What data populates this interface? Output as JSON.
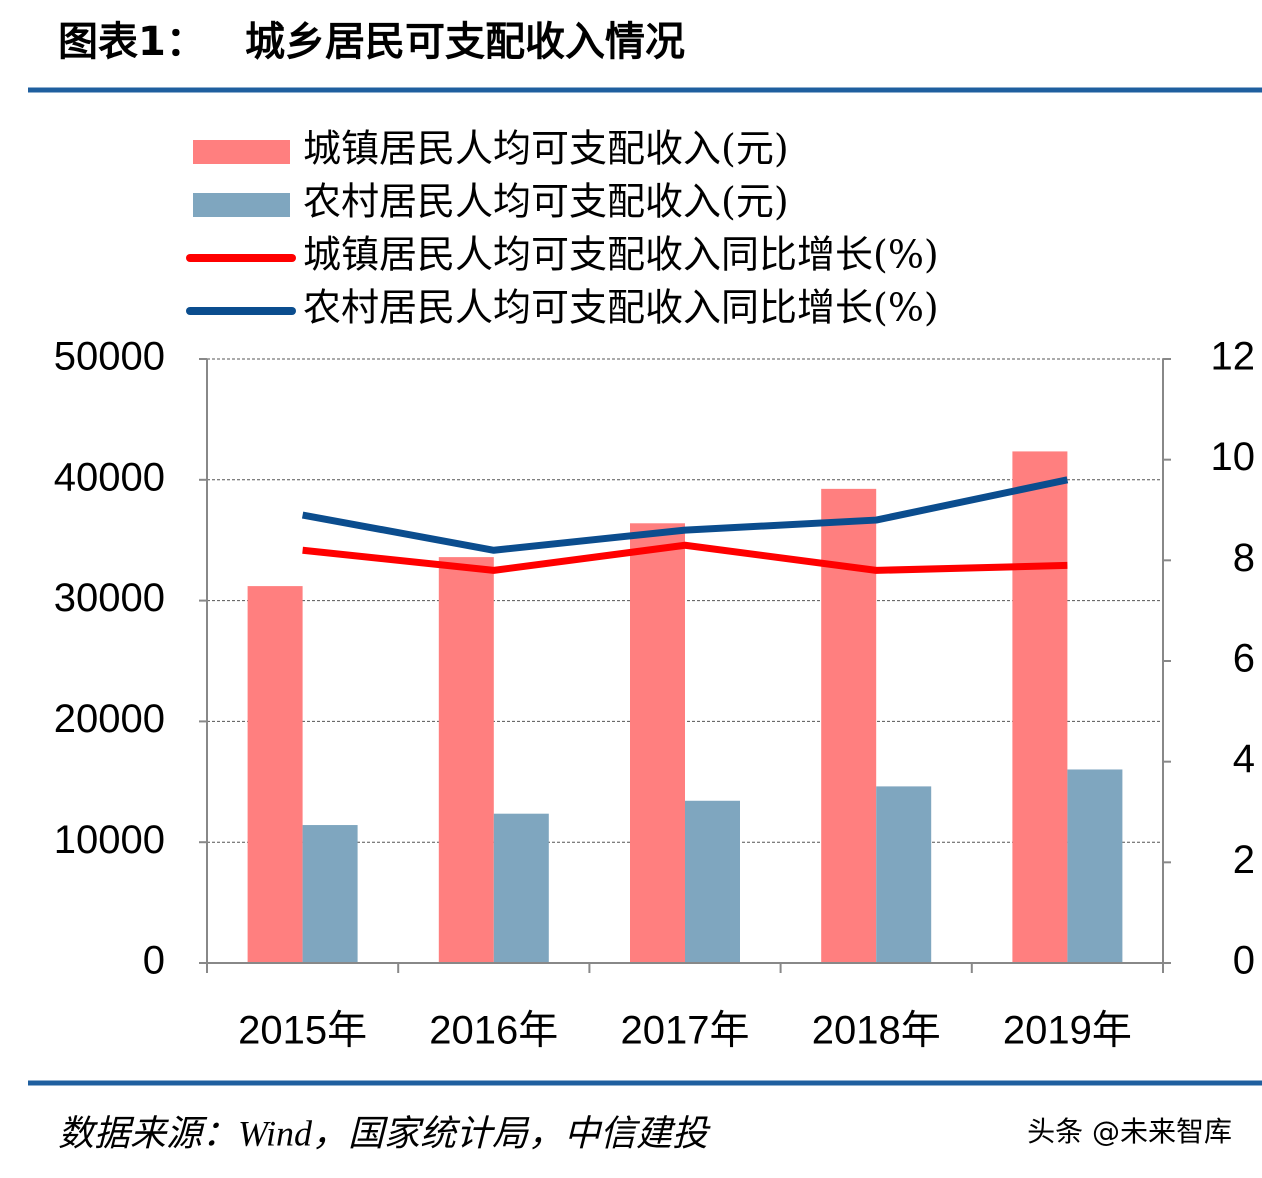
{
  "chart_data": {
    "type": "bar",
    "figure_label": "图表1：",
    "title": "城乡居民可支配收入情况",
    "categories": [
      "2015年",
      "2016年",
      "2017年",
      "2018年",
      "2019年"
    ],
    "series": [
      {
        "name": "城镇居民人均可支配收入(元)",
        "type": "bar",
        "color": "#ff7f7f",
        "values": [
          31200,
          33600,
          36400,
          39250,
          42350
        ]
      },
      {
        "name": "农村居民人均可支配收入(元)",
        "type": "bar",
        "color": "#7fa6bf",
        "values": [
          11420,
          12360,
          13430,
          14620,
          16020
        ]
      },
      {
        "name": "城镇居民人均可支配收入同比增长(%)",
        "type": "line",
        "axis": "y2",
        "color": "#ff0000",
        "values": [
          8.2,
          7.8,
          8.3,
          7.8,
          7.9
        ]
      },
      {
        "name": "农村居民人均可支配收入同比增长(%)",
        "type": "line",
        "axis": "y2",
        "color": "#0b4d8e",
        "values": [
          8.9,
          8.2,
          8.6,
          8.8,
          9.6
        ]
      }
    ],
    "ylim": [
      0,
      50000
    ],
    "yticks": [
      0,
      10000,
      20000,
      30000,
      40000,
      50000
    ],
    "y2lim": [
      0,
      12
    ],
    "y2ticks": [
      0,
      2,
      4,
      6,
      8,
      10,
      12
    ],
    "grid": true,
    "legend": "top"
  },
  "source": "数据来源：Wind，国家统计局，中信建投",
  "watermark": "头条 @未来智库"
}
